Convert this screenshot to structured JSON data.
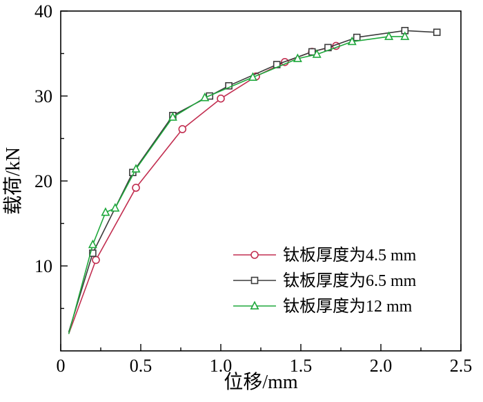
{
  "chart_data": {
    "type": "line",
    "title": "",
    "xlabel": "位移/mm",
    "ylabel": "载荷/kN",
    "xlim": [
      0,
      2.5
    ],
    "ylim": [
      0,
      40
    ],
    "grid": false,
    "legend_position": "lower-right",
    "frame_color": "#000000",
    "xtick_values": [
      0,
      0.5,
      1.0,
      1.5,
      2.0,
      2.5
    ],
    "xtick_labels": [
      "0",
      "0.5",
      "1.0",
      "1.5",
      "2.0",
      "2.5"
    ],
    "xminor_values": [
      0.25,
      0.75,
      1.25,
      1.75,
      2.25
    ],
    "ytick_values": [
      10,
      20,
      30,
      40
    ],
    "ytick_labels": [
      "10",
      "20",
      "30",
      "40"
    ],
    "yminor_values": [
      5,
      15,
      25,
      35
    ],
    "series": [
      {
        "name": "钛板厚度为4.5 mm",
        "color": "#c22e50",
        "marker": "circle",
        "x": [
          0.05,
          0.22,
          0.47,
          0.76,
          1.0,
          1.22,
          1.4,
          1.57,
          1.72
        ],
        "y": [
          2.0,
          10.7,
          19.2,
          26.1,
          29.7,
          32.3,
          34.0,
          35.2,
          35.9
        ]
      },
      {
        "name": "钛板厚度为6.5 mm",
        "color": "#3b3b3b",
        "marker": "square",
        "x": [
          0.05,
          0.2,
          0.45,
          0.7,
          0.93,
          1.05,
          1.35,
          1.57,
          1.67,
          1.85,
          2.15,
          2.35
        ],
        "y": [
          2.2,
          11.5,
          21.0,
          27.7,
          30.0,
          31.2,
          33.7,
          35.2,
          35.7,
          36.9,
          37.7,
          37.5
        ]
      },
      {
        "name": "钛板厚度为12 mm",
        "color": "#1fa83c",
        "marker": "triangle",
        "x": [
          0.05,
          0.2,
          0.28,
          0.34,
          0.47,
          0.7,
          0.9,
          1.2,
          1.48,
          1.6,
          1.82,
          2.05,
          2.15
        ],
        "y": [
          2.0,
          12.5,
          16.3,
          16.8,
          21.4,
          27.5,
          29.8,
          32.2,
          34.4,
          34.9,
          36.4,
          37.0,
          37.0
        ]
      }
    ]
  }
}
